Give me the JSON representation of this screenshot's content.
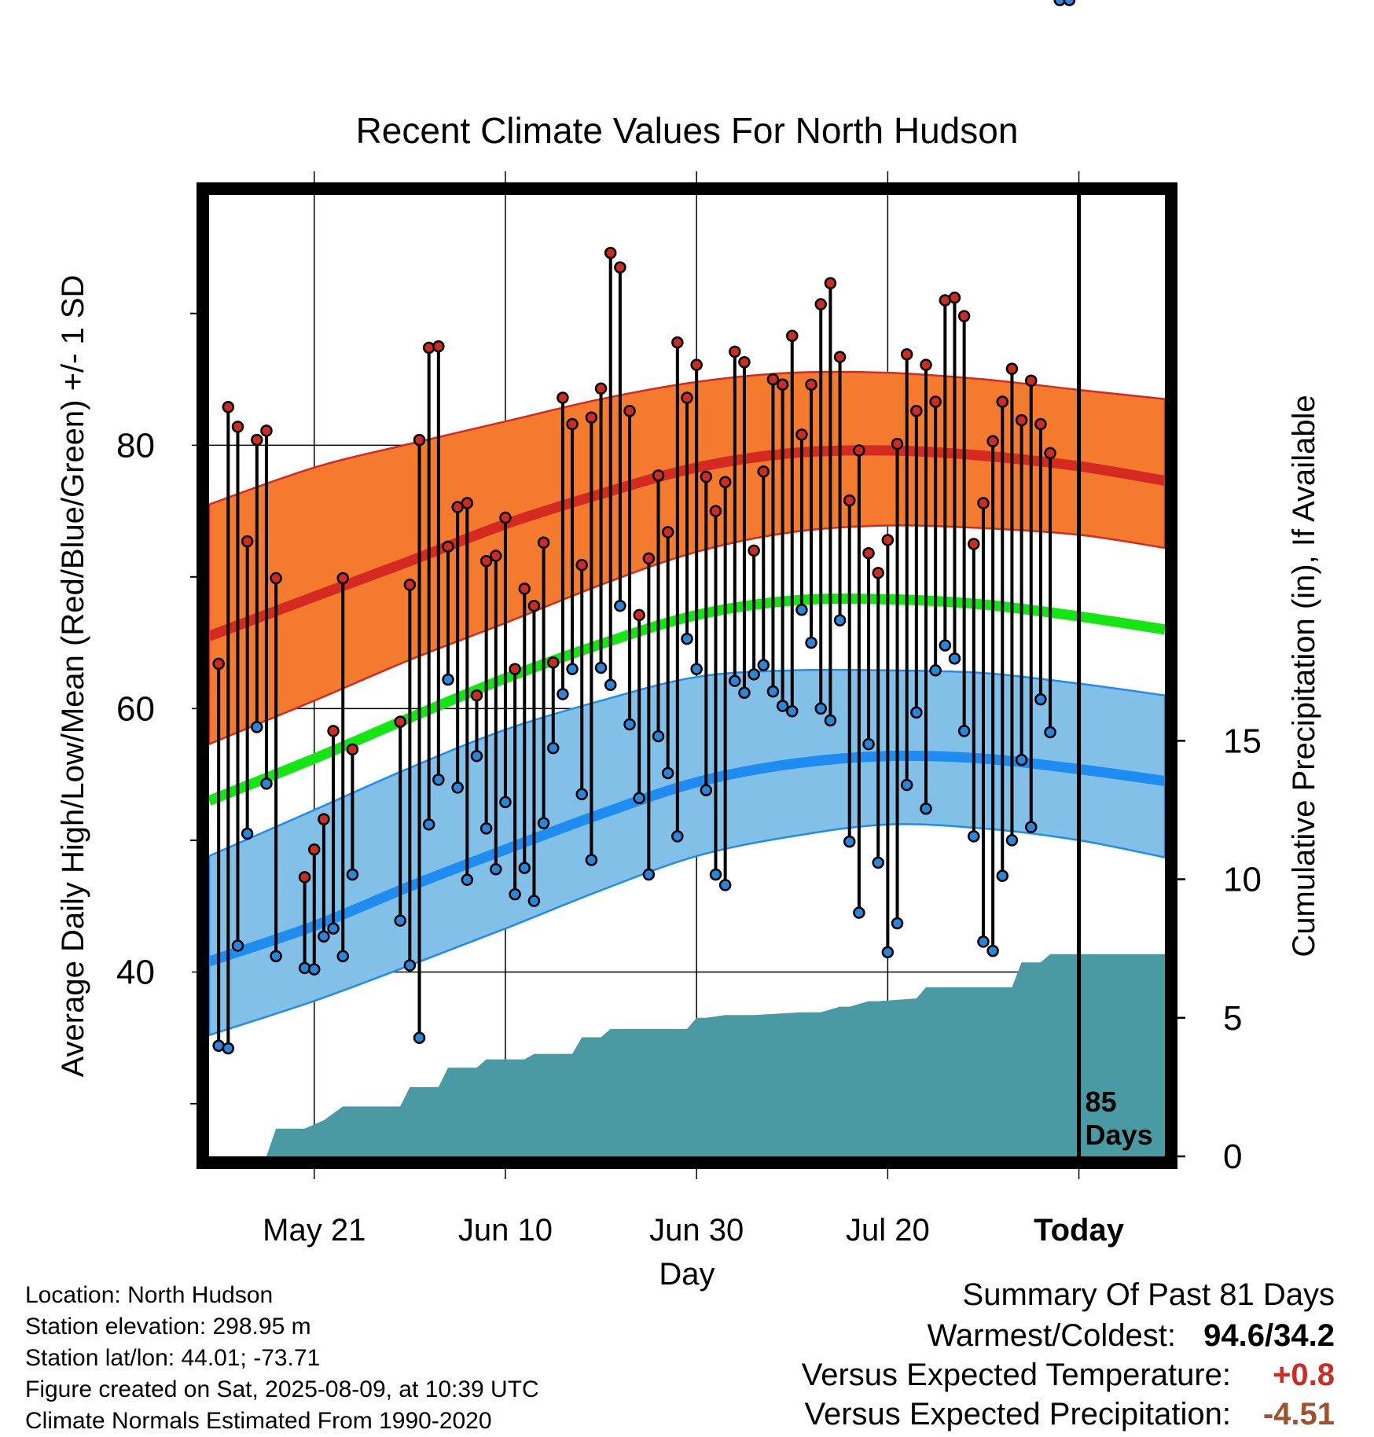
{
  "chart_data": {
    "type": "line",
    "title": "Recent Climate Values For North Hudson",
    "xlabel": "Day",
    "ylabel_left": "Average Daily High/Low/Mean (Red/Blue/Green) +/- 1 SD",
    "ylabel_right": "Cumulative Precipitation (in), If Available",
    "xlim_days_from_today": [
      -91,
      9
    ],
    "ylim_temp": [
      26,
      99
    ],
    "ylim_precip": [
      0,
      34.7
    ],
    "x_ticks": [
      {
        "day": -80,
        "label": "May 21"
      },
      {
        "day": -60,
        "label": "Jun 10"
      },
      {
        "day": -40,
        "label": "Jun 30"
      },
      {
        "day": -20,
        "label": "Jul 20"
      },
      {
        "day": 0,
        "label": "Today"
      }
    ],
    "y_ticks_temp": [
      40,
      60,
      80
    ],
    "y_minor_ticks_temp": [
      30,
      50,
      70,
      90
    ],
    "y_ticks_precip": [
      0,
      5,
      10,
      15
    ],
    "grid": true,
    "today_marker_label": [
      "85",
      "Days"
    ],
    "normal_band_days": [
      -91,
      -80,
      -70,
      -60,
      -50,
      -40,
      -30,
      -20,
      -10,
      0,
      9
    ],
    "normal_high": [
      65.5,
      68.5,
      71.2,
      74.0,
      76.3,
      78.3,
      79.4,
      79.6,
      79.2,
      78.4,
      77.3
    ],
    "normal_high_sd_upper": [
      75.5,
      78.3,
      80.1,
      81.8,
      83.5,
      84.8,
      85.5,
      85.5,
      85.0,
      84.2,
      83.5
    ],
    "normal_high_sd_lower": [
      57.3,
      60.6,
      63.7,
      66.5,
      69.4,
      71.9,
      73.4,
      73.9,
      73.7,
      73.2,
      72.2
    ],
    "normal_mean": [
      53.0,
      56.2,
      59.3,
      62.3,
      64.9,
      67.1,
      68.2,
      68.3,
      67.9,
      67.0,
      66.0
    ],
    "normal_low": [
      40.8,
      43.5,
      46.5,
      49.3,
      52.0,
      54.4,
      55.8,
      56.4,
      56.2,
      55.4,
      54.5
    ],
    "normal_low_sd_upper": [
      48.8,
      52.3,
      55.5,
      58.4,
      60.6,
      62.4,
      62.9,
      62.9,
      62.7,
      61.9,
      61.0
    ],
    "normal_low_sd_lower": [
      35.2,
      37.8,
      40.5,
      43.3,
      46.2,
      48.8,
      50.3,
      51.2,
      50.9,
      50.0,
      48.7
    ],
    "daily_day": [
      -90,
      -89,
      -88,
      -87,
      -86,
      -85,
      -84,
      -81,
      -80,
      -79,
      -78,
      -77,
      -76,
      -71,
      -70,
      -69,
      -68,
      -67,
      -66,
      -65,
      -64,
      -63,
      -62,
      -61,
      -60,
      -59,
      -58,
      -57,
      -56,
      -55,
      -54,
      -53,
      -52,
      -51,
      -50,
      -49,
      -48,
      -47,
      -46,
      -45,
      -44,
      -43,
      -42,
      -41,
      -40,
      -39,
      -38,
      -37,
      -36,
      -35,
      -34,
      -33,
      -32,
      -31,
      -30,
      -29,
      -28,
      -27,
      -26,
      -25,
      -24,
      -23,
      -22,
      -21,
      -20,
      -19,
      -18,
      -17,
      -16,
      -15,
      -14,
      -13,
      -12,
      -11,
      -10,
      -9,
      -8,
      -7,
      -6,
      -5,
      -4,
      -3,
      -2,
      -1
    ],
    "daily_high": [
      63.4,
      82.9,
      81.4,
      72.7,
      80.4,
      81.1,
      69.9,
      47.2,
      49.3,
      51.6,
      58.3,
      69.9,
      56.9,
      59.0,
      69.4,
      80.4,
      87.4,
      87.5,
      72.3,
      75.3,
      75.6,
      61.0,
      71.2,
      71.6,
      74.5,
      63.0,
      69.1,
      67.8,
      72.6,
      63.5,
      83.6,
      81.6,
      70.9,
      82.1,
      84.3,
      94.6,
      93.5,
      82.6,
      67.1,
      71.4,
      77.7,
      73.4,
      87.8,
      83.6,
      86.1,
      77.6,
      75.0,
      77.2,
      87.1,
      86.3,
      72.0,
      78.0,
      85.0,
      84.6,
      88.3,
      80.8,
      84.6,
      90.7,
      92.3,
      86.7,
      75.8,
      79.6,
      71.8,
      70.3,
      72.8,
      80.1,
      86.9,
      82.6,
      86.1,
      83.3,
      91.0,
      91.2,
      89.8,
      72.5,
      75.6,
      80.3,
      83.3,
      85.8,
      81.9,
      84.9,
      81.6,
      79.4
    ],
    "daily_low": [
      34.4,
      34.2,
      42.0,
      50.5,
      58.6,
      54.3,
      41.2,
      40.3,
      40.2,
      42.7,
      43.3,
      41.2,
      47.4,
      43.9,
      40.5,
      35.0,
      51.2,
      54.6,
      62.2,
      54.0,
      47.0,
      56.4,
      50.9,
      47.8,
      52.9,
      45.9,
      47.9,
      45.4,
      51.3,
      57.0,
      61.1,
      63.0,
      53.5,
      48.5,
      63.1,
      61.8,
      67.8,
      58.8,
      53.2,
      47.4,
      57.9,
      55.1,
      50.3,
      65.3,
      63.0,
      53.8,
      47.4,
      46.6,
      62.1,
      61.2,
      62.6,
      63.3,
      61.3,
      60.2,
      59.8,
      67.5,
      65.0,
      60.0,
      59.1,
      66.7,
      49.9,
      44.5,
      57.3,
      48.3,
      41.5,
      43.7,
      54.2,
      59.7,
      52.4,
      62.9,
      64.8,
      63.8,
      58.3,
      50.3,
      42.3,
      41.6,
      47.3,
      50.0,
      56.1,
      51.0,
      60.7,
      58.2
    ],
    "precip_day": [
      -91,
      -85,
      -84,
      -81,
      -79,
      -77,
      -76,
      -71,
      -70,
      -67,
      -66,
      -63,
      -62,
      -58,
      -57,
      -56,
      -53,
      -52,
      -50,
      -49,
      -44,
      -41,
      -40,
      -39,
      -37,
      -35,
      -34,
      -29,
      -27,
      -25,
      -24,
      -22,
      -21,
      -17,
      -16,
      -14,
      -13,
      -7,
      -6,
      -4,
      -3,
      9
    ],
    "precip_cum": [
      0.0,
      0.0,
      1.0,
      1.0,
      1.3,
      1.8,
      1.8,
      1.8,
      2.5,
      2.5,
      3.2,
      3.2,
      3.5,
      3.5,
      3.7,
      3.7,
      3.7,
      4.3,
      4.3,
      4.6,
      4.6,
      4.6,
      5.0,
      5.0,
      5.1,
      5.1,
      5.1,
      5.2,
      5.2,
      5.4,
      5.4,
      5.6,
      5.6,
      5.7,
      6.1,
      6.1,
      6.1,
      6.1,
      7.0,
      7.0,
      7.3,
      7.3
    ]
  },
  "meta": {
    "lines": [
      "Location: North Hudson",
      "Station elevation: 298.95 m",
      "Station lat/lon: 44.01; -73.71",
      "Figure created on Sat, 2025-08-09, at 10:39 UTC",
      "Climate Normals Estimated From 1990-2020"
    ]
  },
  "summary": {
    "heading": "Summary Of Past 81 Days",
    "warm_label": "Warmest/Coldest:",
    "warm_value": "94.6/34.2",
    "temp_label": "Versus Expected Temperature:",
    "temp_value": "+0.8",
    "precip_label": "Versus Expected Precipitation:",
    "precip_value": "-4.51"
  },
  "colors": {
    "high_band": "#f47a2e",
    "high_line": "#d42a22",
    "high_edge": "#d42a22",
    "low_band": "#82c0e8",
    "low_line": "#1e8cf0",
    "low_edge": "#1e8cf0",
    "mean_line": "#14e614",
    "precip_fill": "#4a9aa4",
    "high_dot": "#cc2c22",
    "low_dot": "#2a86d8",
    "temp_anomaly": "#cc2c22",
    "precip_anomaly": "#a0522d"
  }
}
